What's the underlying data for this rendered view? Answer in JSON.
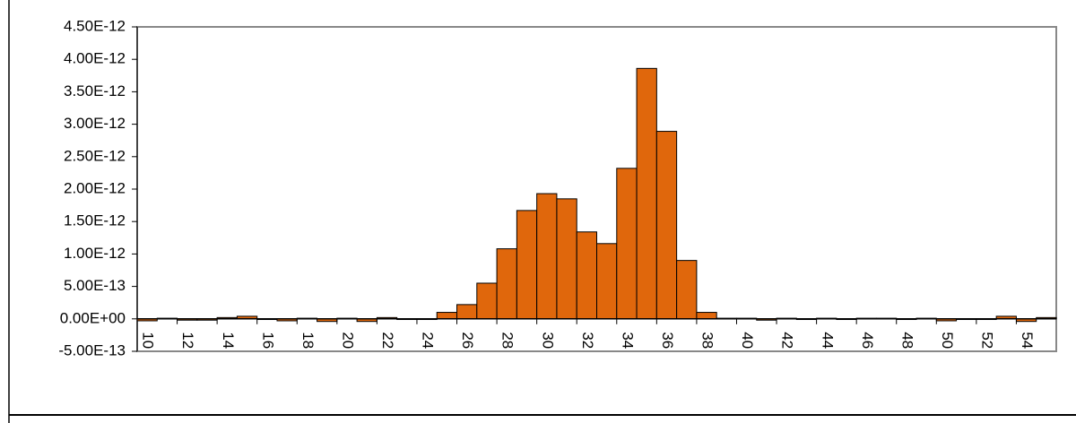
{
  "chart_data": {
    "type": "bar",
    "categories": [
      "10",
      null,
      "12",
      null,
      "14",
      null,
      "16",
      null,
      "18",
      null,
      "20",
      null,
      "22",
      null,
      "24",
      null,
      "26",
      null,
      "28",
      null,
      "30",
      null,
      "32",
      null,
      "34",
      null,
      "36",
      null,
      "38",
      null,
      "40",
      null,
      "42",
      null,
      "44",
      null,
      "46",
      null,
      "48",
      null,
      "50",
      null,
      "52",
      null,
      "54",
      null
    ],
    "values": [
      -3e-14,
      1e-14,
      -2e-14,
      -2e-14,
      2e-14,
      4e-14,
      -1e-14,
      -3e-14,
      1e-14,
      -4e-14,
      1e-14,
      -4e-14,
      2e-14,
      -1e-14,
      -1e-14,
      1e-13,
      2.2e-13,
      5.5e-13,
      1.08e-12,
      1.67e-12,
      1.93e-12,
      1.85e-12,
      1.34e-12,
      1.16e-12,
      2.32e-12,
      3.86e-12,
      2.89e-12,
      9e-13,
      1e-13,
      1e-14,
      1e-14,
      -2e-14,
      1e-14,
      -1e-14,
      1e-14,
      -1e-14,
      1e-14,
      1e-14,
      -1e-14,
      1e-14,
      -3e-14,
      -1e-14,
      -1e-14,
      4e-14,
      -4e-14,
      2e-14
    ],
    "color": "#e0670c",
    "ylim": [
      -5e-13,
      4.5e-12
    ],
    "yticks": [
      {
        "value": -5e-13,
        "label": "-5.00E-13"
      },
      {
        "value": 0,
        "label": "0.00E+00"
      },
      {
        "value": 5e-13,
        "label": "5.00E-13"
      },
      {
        "value": 1e-12,
        "label": "1.00E-12"
      },
      {
        "value": 1.5e-12,
        "label": "1.50E-12"
      },
      {
        "value": 2e-12,
        "label": "2.00E-12"
      },
      {
        "value": 2.5e-12,
        "label": "2.50E-12"
      },
      {
        "value": 3e-12,
        "label": "3.00E-12"
      },
      {
        "value": 3.5e-12,
        "label": "3.50E-12"
      },
      {
        "value": 4e-12,
        "label": "4.00E-12"
      },
      {
        "value": 4.5e-12,
        "label": "4.50E-12"
      }
    ],
    "grid": false
  }
}
